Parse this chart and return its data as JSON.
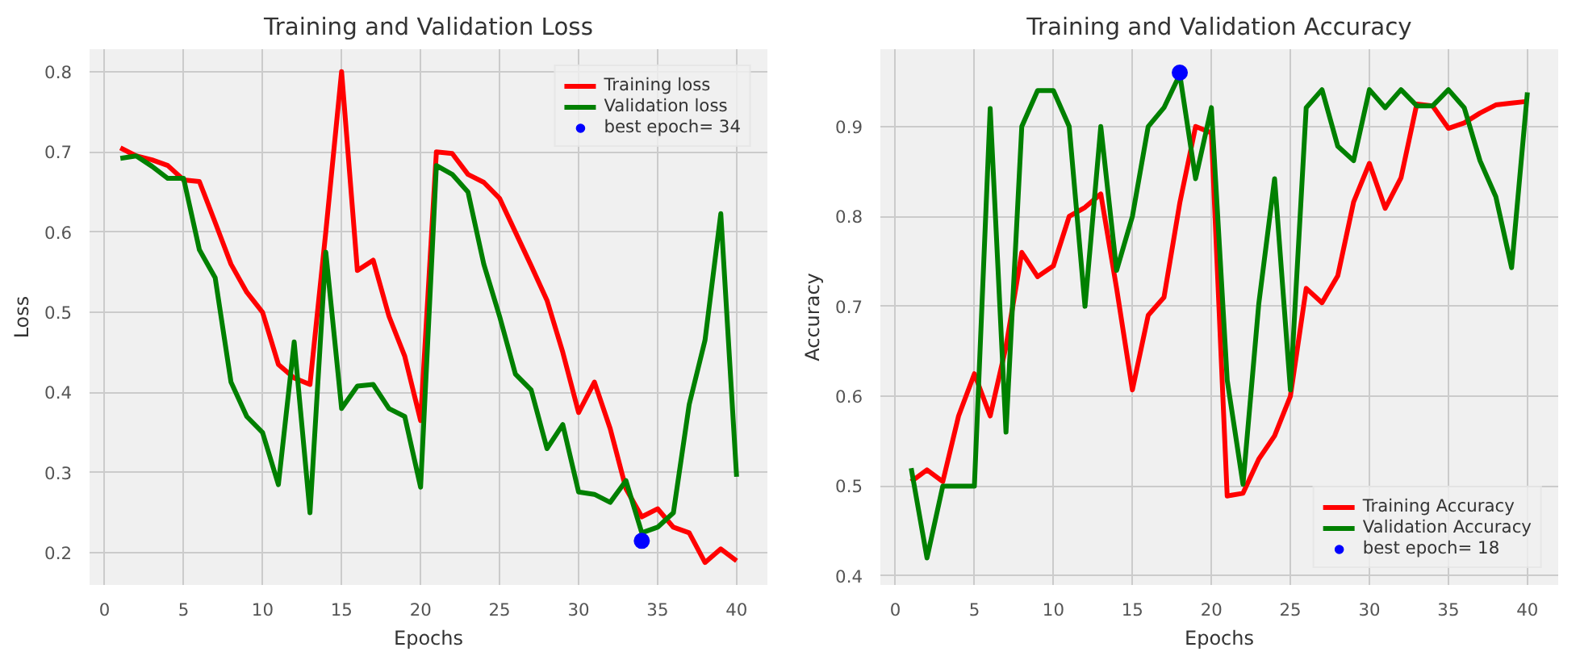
{
  "chart_data": [
    {
      "type": "line",
      "title": "Training and Validation Loss",
      "xlabel": "Epochs",
      "ylabel": "Loss",
      "xlim": [
        -0.95,
        41.95
      ],
      "ylim": [
        0.16,
        0.828
      ],
      "xticks": [
        0,
        5,
        10,
        15,
        20,
        25,
        30,
        35,
        40
      ],
      "yticks": [
        0.2,
        0.3,
        0.4,
        0.5,
        0.6,
        0.7,
        0.8
      ],
      "grid": true,
      "legend": "top right",
      "x": [
        1,
        2,
        3,
        4,
        5,
        6,
        7,
        8,
        9,
        10,
        11,
        12,
        13,
        14,
        15,
        16,
        17,
        18,
        19,
        20,
        21,
        22,
        23,
        24,
        25,
        26,
        27,
        28,
        29,
        30,
        31,
        32,
        33,
        34,
        35,
        36,
        37,
        38,
        39,
        40
      ],
      "series": [
        {
          "name": "Training loss",
          "color": "#ff0000",
          "values": [
            0.705,
            0.695,
            0.69,
            0.683,
            0.665,
            0.663,
            0.612,
            0.56,
            0.525,
            0.5,
            0.435,
            0.418,
            0.41,
            0.6,
            0.8,
            0.552,
            0.565,
            0.495,
            0.445,
            0.365,
            0.7,
            0.698,
            0.672,
            0.662,
            0.642,
            0.6,
            0.558,
            0.515,
            0.45,
            0.375,
            0.413,
            0.355,
            0.28,
            0.245,
            0.255,
            0.232,
            0.225,
            0.188,
            0.205,
            0.19
          ]
        },
        {
          "name": "Validation loss",
          "color": "#008000",
          "values": [
            0.692,
            0.695,
            0.682,
            0.667,
            0.667,
            0.578,
            0.543,
            0.413,
            0.37,
            0.35,
            0.285,
            0.463,
            0.25,
            0.575,
            0.38,
            0.408,
            0.41,
            0.38,
            0.37,
            0.282,
            0.683,
            0.672,
            0.65,
            0.56,
            0.495,
            0.423,
            0.403,
            0.33,
            0.36,
            0.276,
            0.273,
            0.263,
            0.29,
            0.225,
            0.232,
            0.25,
            0.385,
            0.465,
            0.623,
            0.295
          ]
        },
        {
          "name": "best epoch= 34",
          "type": "scatter",
          "marker": "circle",
          "color": "#0000ff",
          "x": [
            34
          ],
          "values": [
            0.215
          ]
        }
      ]
    },
    {
      "type": "line",
      "title": "Training and Validation Accuracy",
      "xlabel": "Epochs",
      "ylabel": "Accuracy",
      "xlim": [
        -0.95,
        41.95
      ],
      "ylim": [
        0.39,
        0.986
      ],
      "xticks": [
        0,
        5,
        10,
        15,
        20,
        25,
        30,
        35,
        40
      ],
      "yticks": [
        0.4,
        0.5,
        0.6,
        0.7,
        0.8,
        0.9
      ],
      "grid": true,
      "legend": "bottom right",
      "x": [
        1,
        2,
        3,
        4,
        5,
        6,
        7,
        8,
        9,
        10,
        11,
        12,
        13,
        14,
        15,
        16,
        17,
        18,
        19,
        20,
        21,
        22,
        23,
        24,
        25,
        26,
        27,
        28,
        29,
        30,
        31,
        32,
        33,
        34,
        35,
        36,
        37,
        38,
        39,
        40
      ],
      "series": [
        {
          "name": "Training Accuracy",
          "color": "#ff0000",
          "values": [
            0.505,
            0.518,
            0.505,
            0.578,
            0.625,
            0.578,
            0.655,
            0.76,
            0.733,
            0.745,
            0.8,
            0.81,
            0.825,
            0.72,
            0.607,
            0.69,
            0.71,
            0.815,
            0.9,
            0.893,
            0.489,
            0.492,
            0.53,
            0.556,
            0.6,
            0.72,
            0.704,
            0.734,
            0.816,
            0.859,
            0.809,
            0.843,
            0.925,
            0.923,
            0.898,
            0.904,
            0.915,
            0.924,
            0.926,
            0.928
          ]
        },
        {
          "name": "Validation Accuracy",
          "color": "#008000",
          "values": [
            0.52,
            0.42,
            0.5,
            0.5,
            0.5,
            0.92,
            0.56,
            0.9,
            0.94,
            0.94,
            0.9,
            0.7,
            0.9,
            0.74,
            0.8,
            0.9,
            0.921,
            0.958,
            0.842,
            0.921,
            0.618,
            0.502,
            0.703,
            0.842,
            0.607,
            0.921,
            0.941,
            0.878,
            0.862,
            0.941,
            0.921,
            0.941,
            0.923,
            0.923,
            0.941,
            0.921,
            0.862,
            0.822,
            0.743,
            0.938
          ]
        },
        {
          "name": "best epoch= 18",
          "type": "scatter",
          "marker": "circle",
          "color": "#0000ff",
          "x": [
            18
          ],
          "values": [
            0.96
          ]
        }
      ]
    }
  ]
}
